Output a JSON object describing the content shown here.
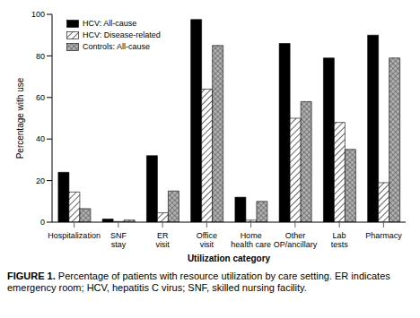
{
  "chart_data": {
    "type": "bar",
    "caption_label": "FIGURE 1.",
    "caption": "Percentage of patients with resource utilization by care setting. ER indicates emergency room; HCV, hepatitis C virus; SNF, skilled nursing facility.",
    "x_label": "Utilization category",
    "y_label": "Percentage with use",
    "categories": [
      "Hospitalization",
      "SNF stay",
      "ER visit",
      "Office visit",
      "Home health care",
      "Other OP/ancillary",
      "Lab tests",
      "Pharmacy"
    ],
    "series": [
      {
        "name": "HCV: All-cause",
        "color": "#000000",
        "values": [
          24,
          1.5,
          32,
          97.5,
          12,
          86,
          79,
          90
        ]
      },
      {
        "name": "HCV: Disease-related",
        "color": "#ffffff",
        "values": [
          14.5,
          0.3,
          4.5,
          64,
          1,
          50,
          48,
          19
        ]
      },
      {
        "name": "Controls: All-cause",
        "color": "#b0b0b0",
        "values": [
          6.5,
          1,
          15,
          85,
          10,
          58,
          35,
          79
        ]
      }
    ],
    "ylim": [
      0,
      100
    ],
    "yticks": [
      0,
      20,
      40,
      60,
      80,
      100
    ],
    "grid": false,
    "legend": "upper left"
  }
}
